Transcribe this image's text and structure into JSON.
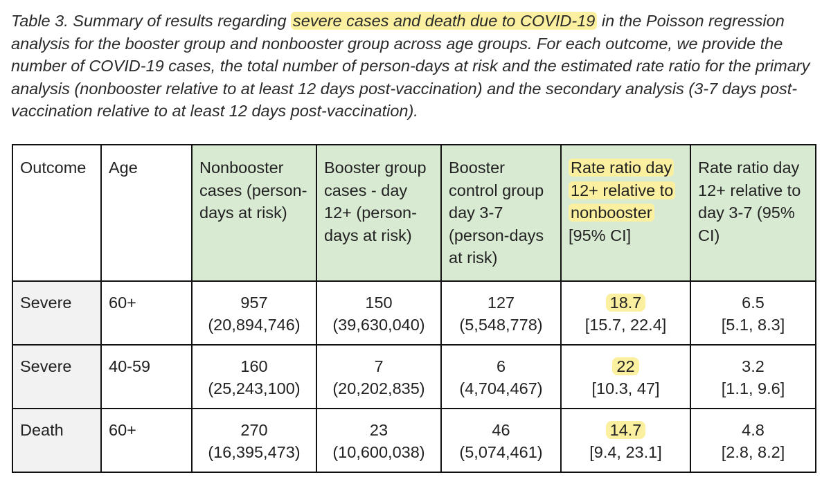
{
  "caption": {
    "part1": "Table 3. Summary of results regarding ",
    "highlight": "severe cases and death due to COVID-19",
    "part2": " in the Poisson regression analysis for the booster group and nonbooster group across age groups. For each outcome, we provide the number of  COVID-19 cases, the total number of person-days at risk and the estimated rate ratio for the primary analysis (nonbooster relative to at least 12 days post-vaccination) and the secondary analysis (3-7 days post-vaccination relative to at least 12 days post-vaccination)."
  },
  "table": {
    "headers": {
      "outcome": "Outcome",
      "age": "Age",
      "nonbooster": "Nonbooster cases (person-days at risk)",
      "booster12": "Booster group cases - day 12+ (person-days at risk)",
      "booster37": "Booster control group day 3-7 (person-days at risk)",
      "rr_primary_highlight": "Rate ratio day 12+ relative to nonbooster",
      "rr_primary_ci": "[95% CI]",
      "rr_secondary": "Rate ratio day 12+ relative to day 3-7 (95% CI)"
    },
    "rows": [
      {
        "outcome": "Severe",
        "age": "60+",
        "nonbooster_cases": "957",
        "nonbooster_days": "(20,894,746)",
        "booster12_cases": "150",
        "booster12_days": "(39,630,040)",
        "booster37_cases": "127",
        "booster37_days": "(5,548,778)",
        "rr_primary": "18.7",
        "rr_primary_ci": "[15.7, 22.4]",
        "rr_secondary": "6.5",
        "rr_secondary_ci": "[5.1, 8.3]"
      },
      {
        "outcome": "Severe",
        "age": "40-59",
        "nonbooster_cases": "160",
        "nonbooster_days": "(25,243,100)",
        "booster12_cases": "7",
        "booster12_days": "(20,202,835)",
        "booster37_cases": "6",
        "booster37_days": "(4,704,467)",
        "rr_primary": "22",
        "rr_primary_ci": "[10.3, 47]",
        "rr_secondary": "3.2",
        "rr_secondary_ci": "[1.1, 9.6]"
      },
      {
        "outcome": "Death",
        "age": "60+",
        "nonbooster_cases": "270",
        "nonbooster_days": "(16,395,473)",
        "booster12_cases": "23",
        "booster12_days": "(10,600,038)",
        "booster37_cases": "46",
        "booster37_days": "(5,074,461)",
        "rr_primary": "14.7",
        "rr_primary_ci": "[9.4, 23.1]",
        "rr_secondary": "4.8",
        "rr_secondary_ci": "[2.8, 8.2]"
      }
    ]
  },
  "colors": {
    "header_green": "#d9ead3",
    "highlight_yellow": "#fbf0a0",
    "label_gray": "#f2f2f2",
    "border": "#111111"
  }
}
